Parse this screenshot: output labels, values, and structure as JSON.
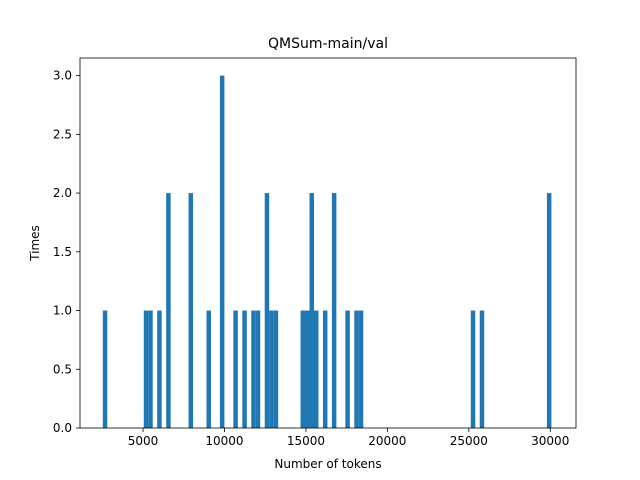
{
  "chart_data": {
    "type": "bar",
    "title": "QMSum-main/val",
    "xlabel": "Number of tokens",
    "ylabel": "Times",
    "xlim": [
      1130,
      31580
    ],
    "ylim": [
      0,
      3.15
    ],
    "xticks": [
      5000,
      10000,
      15000,
      20000,
      25000,
      30000
    ],
    "xtick_labels": [
      "5000",
      "10000",
      "15000",
      "20000",
      "25000",
      "30000"
    ],
    "yticks": [
      0,
      0.5,
      1,
      1.5,
      2,
      2.5,
      3
    ],
    "ytick_labels": [
      "0.0",
      "0.5",
      "1.0",
      "1.5",
      "2.0",
      "2.5",
      "3.0"
    ],
    "grid": false,
    "legend": "none",
    "bar_color": "#1f77b4",
    "bin_width": 275,
    "bins": [
      {
        "x": 2530,
        "count": 1
      },
      {
        "x": 5045,
        "count": 1
      },
      {
        "x": 5320,
        "count": 1
      },
      {
        "x": 5870,
        "count": 1
      },
      {
        "x": 6420,
        "count": 2
      },
      {
        "x": 7795,
        "count": 2
      },
      {
        "x": 8895,
        "count": 1
      },
      {
        "x": 9720,
        "count": 3
      },
      {
        "x": 10545,
        "count": 1
      },
      {
        "x": 11095,
        "count": 1
      },
      {
        "x": 11645,
        "count": 1
      },
      {
        "x": 11920,
        "count": 1
      },
      {
        "x": 12470,
        "count": 2
      },
      {
        "x": 12745,
        "count": 1
      },
      {
        "x": 13020,
        "count": 1
      },
      {
        "x": 14670,
        "count": 1
      },
      {
        "x": 14945,
        "count": 1
      },
      {
        "x": 15220,
        "count": 2
      },
      {
        "x": 15495,
        "count": 1
      },
      {
        "x": 16045,
        "count": 1
      },
      {
        "x": 16595,
        "count": 2
      },
      {
        "x": 17420,
        "count": 1
      },
      {
        "x": 17970,
        "count": 1
      },
      {
        "x": 18245,
        "count": 1
      },
      {
        "x": 25120,
        "count": 1
      },
      {
        "x": 25670,
        "count": 1
      },
      {
        "x": 29795,
        "count": 2
      }
    ]
  }
}
